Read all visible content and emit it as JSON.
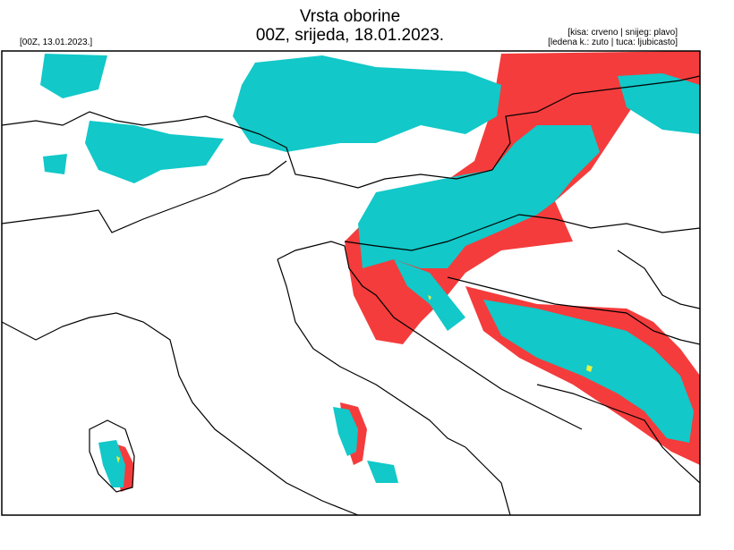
{
  "header": {
    "title": "Vrsta oborine",
    "subtitle": "00Z, srijeda, 18.01.2023.",
    "run": "[00Z, 13.01.2023.]",
    "legend": [
      "[kisa: crveno | snijeg: plavo]",
      "[ledena k.: zuto | tuca: ljubicasto]"
    ]
  }
}
